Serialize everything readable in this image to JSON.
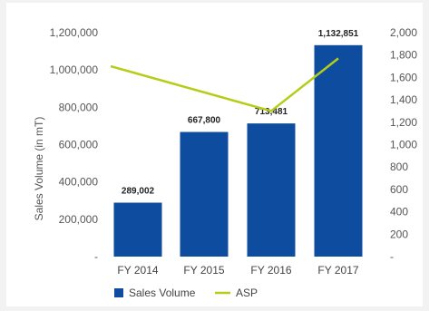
{
  "chart_data": {
    "type": "bar",
    "categories": [
      "FY 2014",
      "FY 2015",
      "FY 2016",
      "FY 2017"
    ],
    "series": [
      {
        "name": "Sales Volume",
        "type": "bar",
        "axis": "left",
        "color": "#0d4c9e",
        "values": [
          289002,
          667800,
          713481,
          1132851
        ],
        "labels": [
          "289,002",
          "667,800",
          "713,481",
          "1,132,851"
        ]
      },
      {
        "name": "ASP",
        "type": "line",
        "axis": "right",
        "color": "#b5cc18",
        "values": [
          1700,
          null,
          1300,
          1770
        ]
      }
    ],
    "ylabel": "Sales Volume (in mT)",
    "ylim": [
      0,
      1200000
    ],
    "y2lim": [
      0,
      2000
    ],
    "yticks": [
      "-",
      "200,000",
      "400,000",
      "600,000",
      "800,000",
      "1,000,000",
      "1,200,000"
    ],
    "y2ticks": [
      "-",
      "200",
      "400",
      "600",
      "800",
      "1,000",
      "1,200",
      "1,400",
      "1,600",
      "1,800",
      "2,000"
    ],
    "grid": false,
    "legend": "bottom"
  }
}
